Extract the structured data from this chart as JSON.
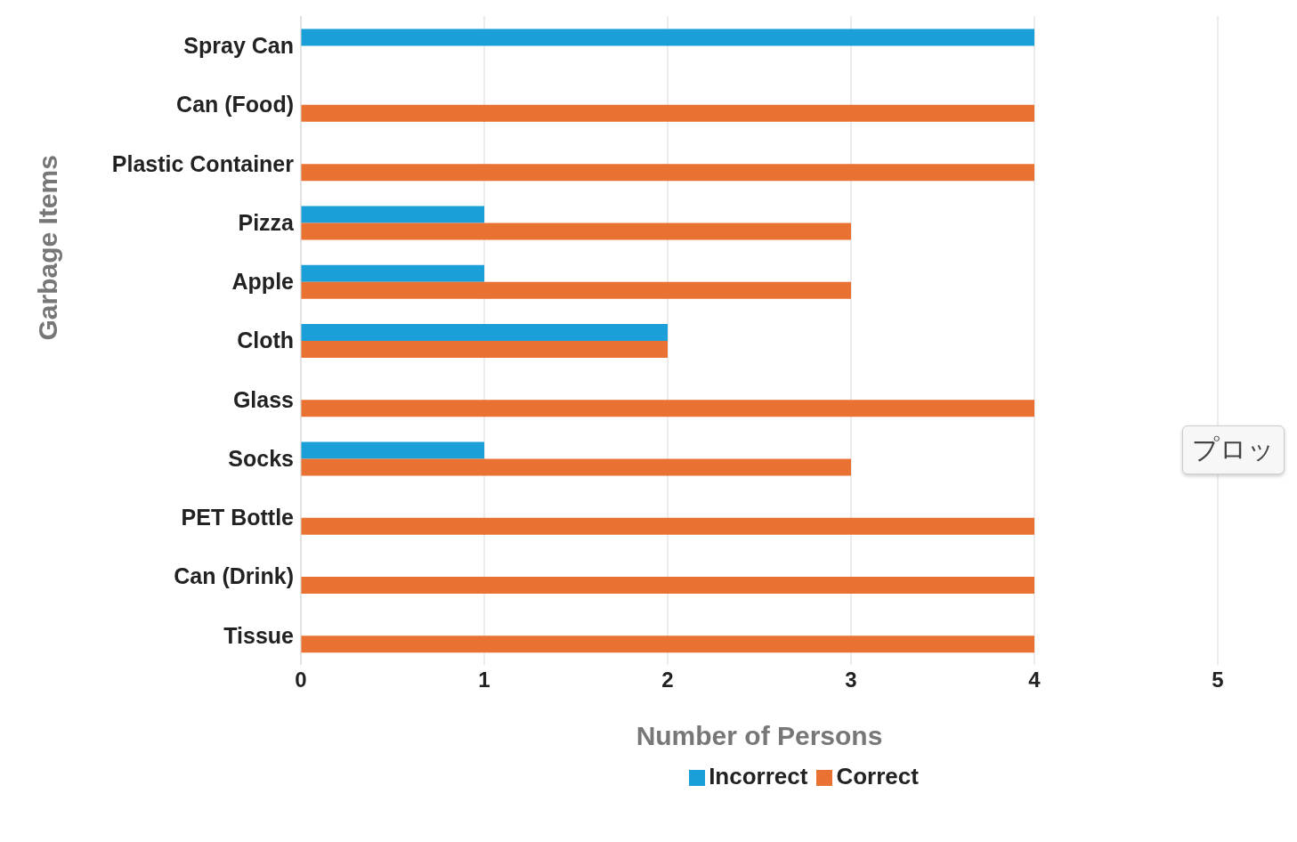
{
  "chart_data": {
    "type": "bar",
    "orientation": "horizontal",
    "xlabel": "Number of Persons",
    "ylabel": "Garbage Items",
    "categories": [
      "Spray Can",
      "Can (Food)",
      "Plastic Container",
      "Pizza",
      "Apple",
      "Cloth",
      "Glass",
      "Socks",
      "PET Bottle",
      "Can (Drink)",
      "Tissue"
    ],
    "series": [
      {
        "name": "Incorrect",
        "color": "#1a9fd8",
        "values": [
          4,
          0,
          0,
          1,
          1,
          2,
          0,
          1,
          0,
          0,
          0
        ]
      },
      {
        "name": "Correct",
        "color": "#e97132",
        "values": [
          0,
          4,
          4,
          3,
          3,
          2,
          4,
          3,
          4,
          4,
          4
        ]
      }
    ],
    "xlim": [
      0,
      5
    ],
    "xticks": [
      0,
      1,
      2,
      3,
      4,
      5
    ],
    "grid": "x",
    "legend": "bottom",
    "annotations": [
      "プロッ"
    ]
  }
}
